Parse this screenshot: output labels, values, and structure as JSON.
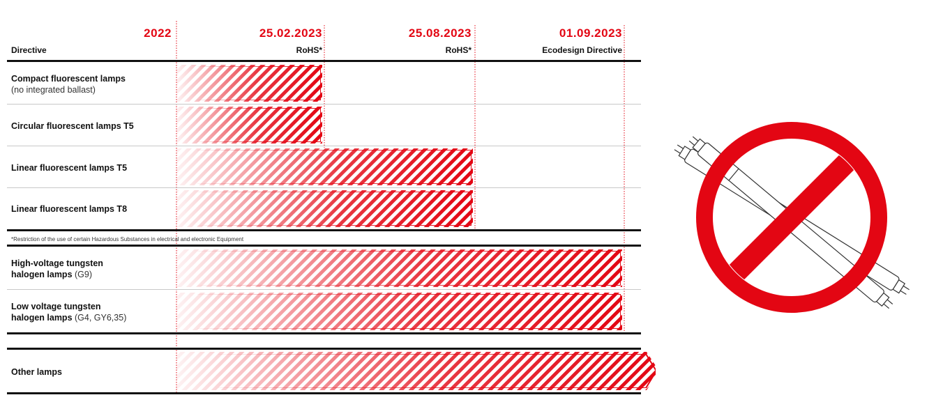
{
  "chart_data": {
    "type": "bar",
    "variant": "gantt-timeline",
    "title": "",
    "xlabel": "",
    "ylabel": "",
    "column_header": "Directive",
    "milestones": [
      {
        "date": "2022",
        "label": ""
      },
      {
        "date": "25.02.2023",
        "label": "RoHS*"
      },
      {
        "date": "25.08.2023",
        "label": "RoHS*"
      },
      {
        "date": "01.09.2023",
        "label": "Ecodesign Directive"
      }
    ],
    "rows": [
      {
        "name": "Compact fluorescent lamps",
        "detail": "(no integrated ballast)",
        "start": "2022",
        "end": "25.02.2023",
        "group": "rohs"
      },
      {
        "name": "Circular fluorescent lamps T5",
        "detail": "",
        "start": "2022",
        "end": "25.02.2023",
        "group": "rohs"
      },
      {
        "name": "Linear fluorescent lamps T5",
        "detail": "",
        "start": "2022",
        "end": "25.08.2023",
        "group": "rohs"
      },
      {
        "name": "Linear fluorescent lamps T8",
        "detail": "",
        "start": "2022",
        "end": "25.08.2023",
        "group": "rohs"
      },
      {
        "name_line1": "High-voltage tungsten",
        "name_line2": "halogen lamps",
        "detail": "(G9)",
        "start": "2022",
        "end": "01.09.2023",
        "group": "ecodesign"
      },
      {
        "name_line1": "Low voltage tungsten",
        "name_line2": "halogen lamps",
        "detail": "(G4, GY6,35)",
        "start": "2022",
        "end": "01.09.2023",
        "group": "ecodesign"
      },
      {
        "name": "Other lamps",
        "detail": "",
        "start": "2022",
        "end": "ongoing",
        "group": "other"
      }
    ],
    "footnote": "*Restriction of the use of certain Hazardous Substances in electrical and electronic Equipment",
    "grid": true,
    "legend": "none"
  },
  "colors": {
    "accent": "#e30613",
    "text": "#111111",
    "rule": "#111111",
    "thin_rule": "#c8c8c8"
  },
  "icons": {
    "prohibition": "prohibition-sign-with-fluorescent-tubes-icon"
  }
}
